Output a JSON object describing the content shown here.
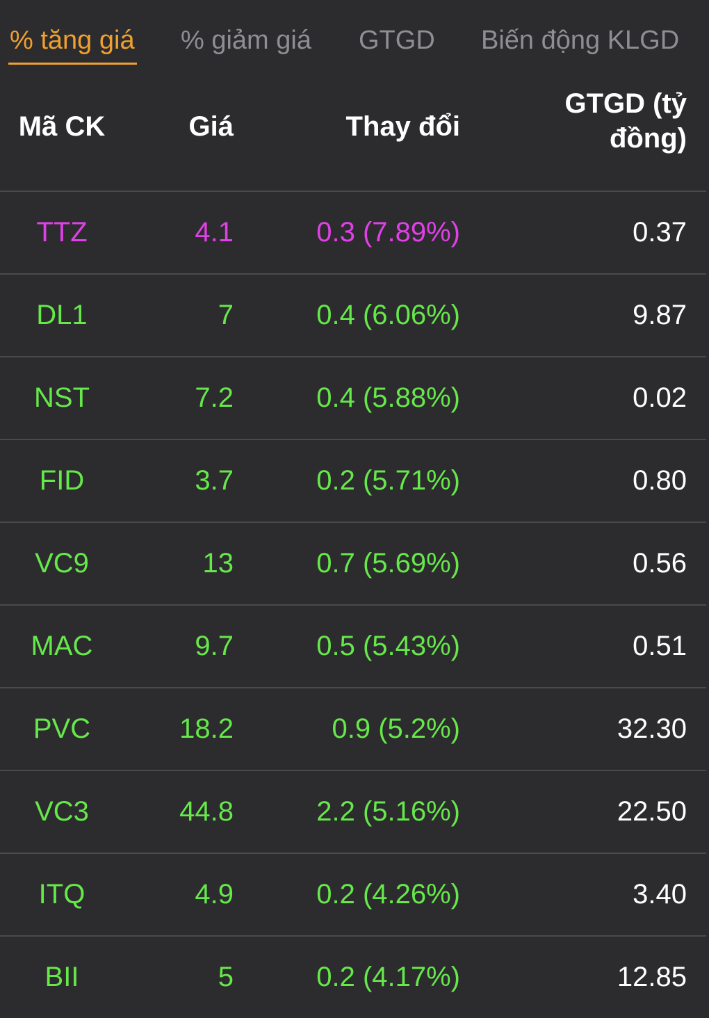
{
  "colors": {
    "background": "#2c2c2e",
    "tab_active": "#f0a030",
    "tab_inactive": "#8e8e93",
    "up": "#66e84a",
    "ceiling": "#e040e8",
    "value": "#ffffff",
    "separator": "#4a4a4d"
  },
  "tabs": [
    {
      "label": "% tăng giá",
      "active": true
    },
    {
      "label": "% giảm giá",
      "active": false
    },
    {
      "label": "GTGD",
      "active": false
    },
    {
      "label": "Biến động KLGD",
      "active": false
    }
  ],
  "columns": {
    "code": "Mã CK",
    "price": "Giá",
    "change": "Thay đổi",
    "value_line1": "GTGD (tỷ",
    "value_line2": "đồng)"
  },
  "rows": [
    {
      "code": "TTZ",
      "price": "4.1",
      "change": "0.3 (7.89%)",
      "value": "0.37",
      "status": "ceiling"
    },
    {
      "code": "DL1",
      "price": "7",
      "change": "0.4 (6.06%)",
      "value": "9.87",
      "status": "up"
    },
    {
      "code": "NST",
      "price": "7.2",
      "change": "0.4 (5.88%)",
      "value": "0.02",
      "status": "up"
    },
    {
      "code": "FID",
      "price": "3.7",
      "change": "0.2 (5.71%)",
      "value": "0.80",
      "status": "up"
    },
    {
      "code": "VC9",
      "price": "13",
      "change": "0.7 (5.69%)",
      "value": "0.56",
      "status": "up"
    },
    {
      "code": "MAC",
      "price": "9.7",
      "change": "0.5 (5.43%)",
      "value": "0.51",
      "status": "up"
    },
    {
      "code": "PVC",
      "price": "18.2",
      "change": "0.9 (5.2%)",
      "value": "32.30",
      "status": "up"
    },
    {
      "code": "VC3",
      "price": "44.8",
      "change": "2.2 (5.16%)",
      "value": "22.50",
      "status": "up"
    },
    {
      "code": "ITQ",
      "price": "4.9",
      "change": "0.2 (4.26%)",
      "value": "3.40",
      "status": "up"
    },
    {
      "code": "BII",
      "price": "5",
      "change": "0.2 (4.17%)",
      "value": "12.85",
      "status": "up"
    }
  ]
}
